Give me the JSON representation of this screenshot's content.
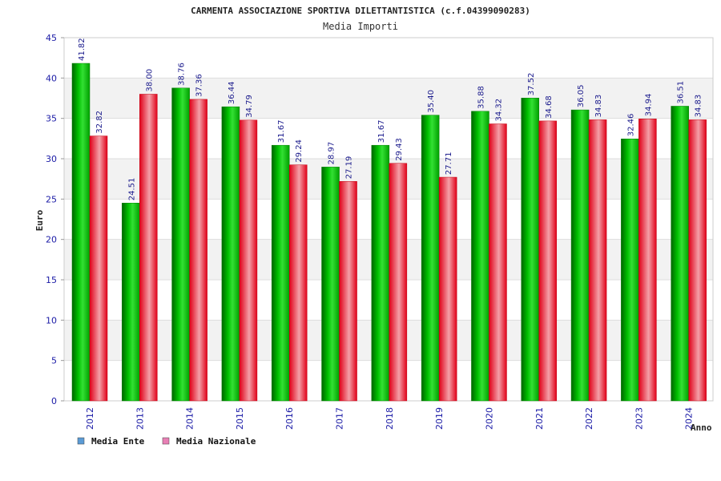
{
  "chart_data": {
    "type": "bar",
    "title": "CARMENTA ASSOCIAZIONE SPORTIVA DILETTANTISTICA (c.f.04399090283)",
    "subtitle": "Media Importi",
    "xlabel": "Anno",
    "ylabel": "Euro",
    "ylim": [
      0,
      45
    ],
    "yticks": [
      "0",
      "5",
      "10",
      "15",
      "20",
      "25",
      "30",
      "35",
      "40",
      "45"
    ],
    "grid": "horizontal bands",
    "legend_position": "bottom-left",
    "categories": [
      "2012",
      "2013",
      "2014",
      "2015",
      "2016",
      "2017",
      "2018",
      "2019",
      "2020",
      "2021",
      "2022",
      "2023",
      "2024"
    ],
    "series": [
      {
        "name": "Media Ente",
        "color": "#00a000",
        "legend_color": "#5b9bd5",
        "values": [
          41.82,
          24.51,
          38.76,
          36.44,
          31.67,
          28.97,
          31.67,
          35.4,
          35.88,
          37.52,
          36.05,
          32.46,
          36.51
        ],
        "labels": [
          "41.82",
          "24.51",
          "38.76",
          "36.44",
          "31.67",
          "28.97",
          "31.67",
          "35.40",
          "35.88",
          "37.52",
          "36.05",
          "32.46",
          "36.51"
        ]
      },
      {
        "name": "Media Nazionale",
        "color": "#e0001a",
        "legend_color": "#e87fb5",
        "values": [
          32.82,
          38.0,
          37.36,
          34.79,
          29.24,
          27.19,
          29.43,
          27.71,
          34.32,
          34.68,
          34.83,
          34.94,
          34.83
        ],
        "labels": [
          "32.82",
          "38.00",
          "37.36",
          "34.79",
          "29.24",
          "27.19",
          "29.43",
          "27.71",
          "34.32",
          "34.68",
          "34.83",
          "34.94",
          "34.83"
        ]
      }
    ]
  }
}
